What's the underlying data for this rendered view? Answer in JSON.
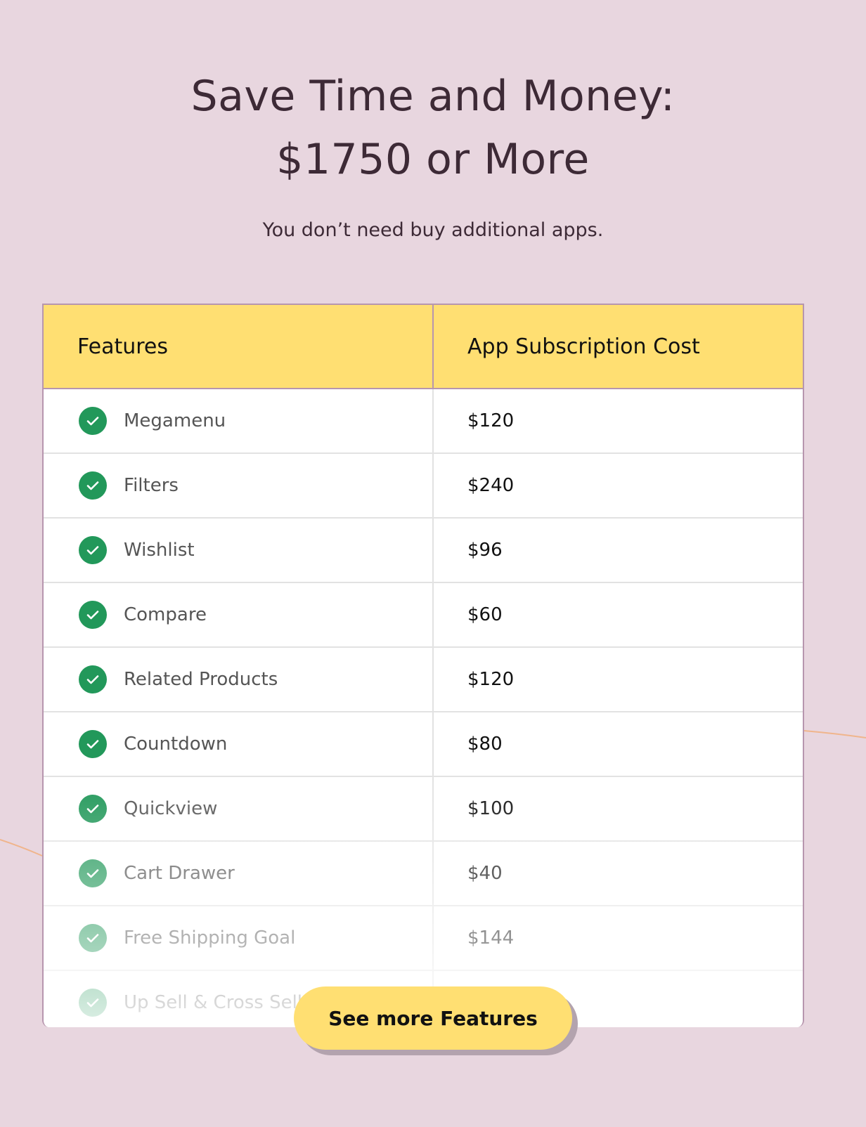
{
  "heading": {
    "line1": "Save Time and Money:",
    "line2": "$1750 or More"
  },
  "subtitle": "You don’t need buy additional apps.",
  "table": {
    "headers": [
      "Features",
      "App Subscription Cost"
    ],
    "rows": [
      {
        "feature": "Megamenu",
        "cost": "$120"
      },
      {
        "feature": "Filters",
        "cost": "$240"
      },
      {
        "feature": "Wishlist",
        "cost": "$96"
      },
      {
        "feature": "Compare",
        "cost": "$60"
      },
      {
        "feature": "Related Products",
        "cost": "$120"
      },
      {
        "feature": "Countdown",
        "cost": "$80"
      },
      {
        "feature": "Quickview",
        "cost": "$100"
      },
      {
        "feature": "Cart Drawer",
        "cost": "$40"
      },
      {
        "feature": "Free Shipping Goal",
        "cost": "$144"
      },
      {
        "feature": "Up Sell & Cross Sell",
        "cost": ""
      }
    ]
  },
  "button": {
    "label": "See more Features"
  },
  "colors": {
    "background": "#e8d6df",
    "header": "#ffdf72",
    "check": "#22985a",
    "text": "#3d2a36"
  },
  "icons": {
    "row": "check-circle-icon"
  }
}
